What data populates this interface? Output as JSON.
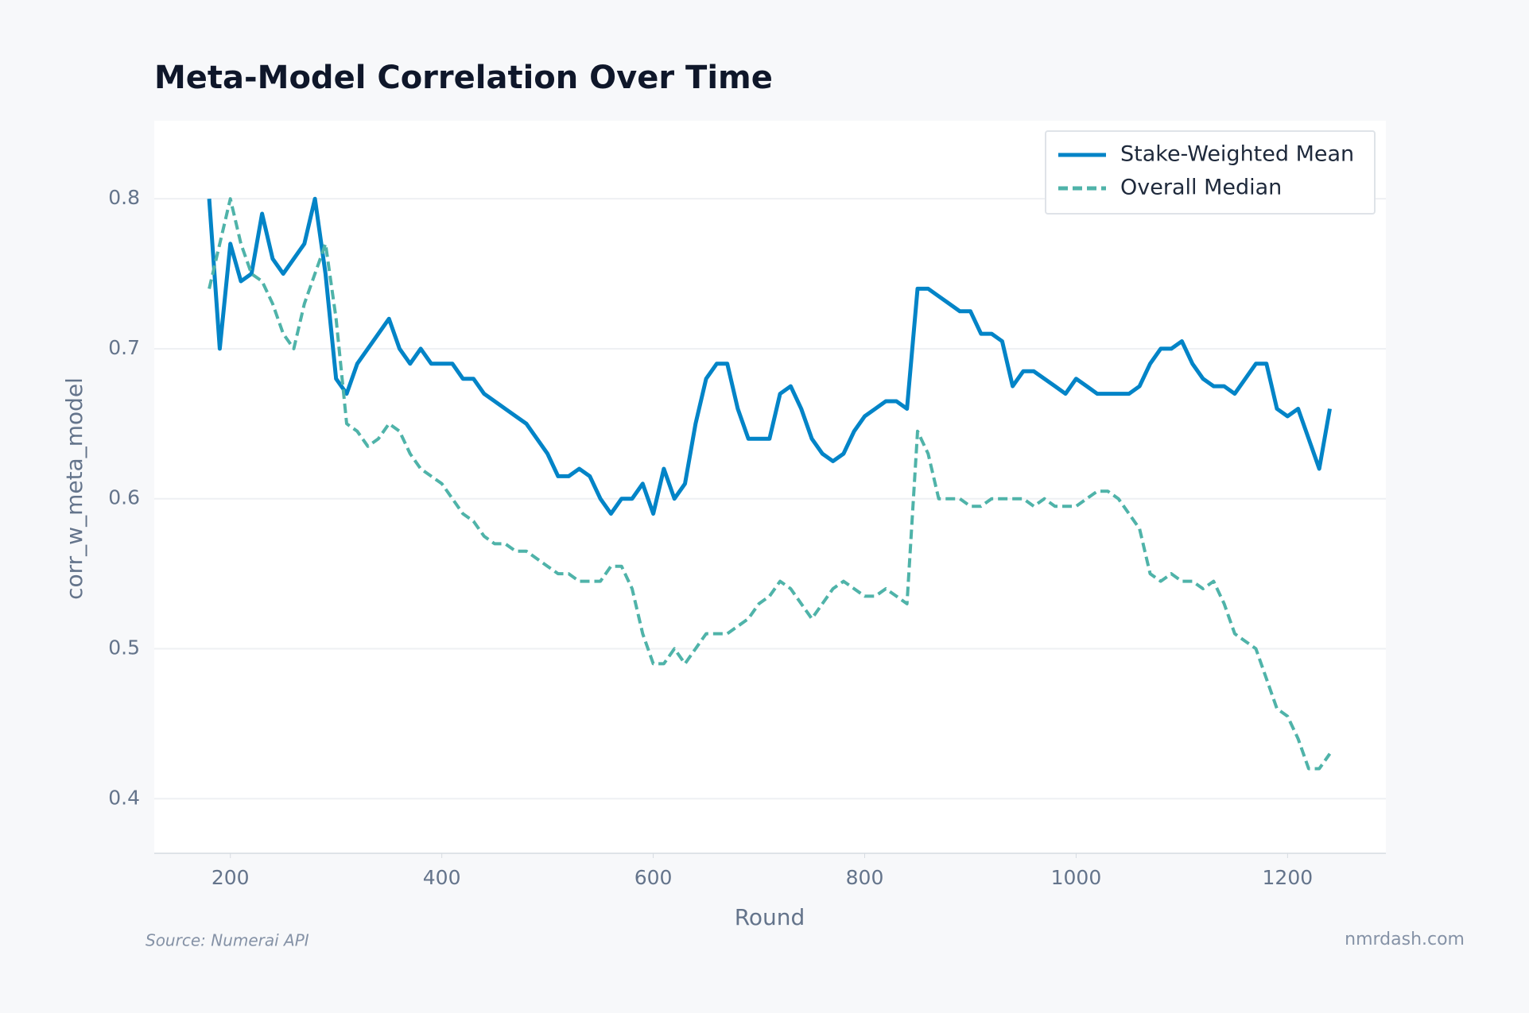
{
  "chart_data": {
    "type": "line",
    "title": "Meta-Model Correlation Over Time",
    "x_label": "Round",
    "y_label": "corr_w_meta_model",
    "source": "Source: Numerai API",
    "watermark": "nmrdash.com",
    "x": [
      180,
      190,
      200,
      210,
      220,
      230,
      240,
      250,
      260,
      270,
      280,
      290,
      300,
      310,
      320,
      330,
      340,
      350,
      360,
      370,
      380,
      390,
      400,
      410,
      420,
      430,
      440,
      450,
      460,
      470,
      480,
      490,
      500,
      510,
      520,
      530,
      540,
      550,
      560,
      570,
      580,
      590,
      600,
      610,
      620,
      630,
      640,
      650,
      660,
      670,
      680,
      690,
      700,
      710,
      720,
      730,
      740,
      750,
      760,
      770,
      780,
      790,
      800,
      810,
      820,
      830,
      840,
      850,
      860,
      870,
      880,
      890,
      900,
      910,
      920,
      930,
      940,
      950,
      960,
      970,
      980,
      990,
      1000,
      1010,
      1020,
      1030,
      1040,
      1050,
      1060,
      1070,
      1080,
      1090,
      1100,
      1110,
      1120,
      1130,
      1140,
      1150,
      1160,
      1170,
      1180,
      1190,
      1200,
      1210,
      1220,
      1230,
      1240
    ],
    "series": [
      {
        "name": "Stake-Weighted Mean",
        "color": "#0284c7",
        "dash": false,
        "values": [
          0.8,
          0.7,
          0.77,
          0.745,
          0.75,
          0.79,
          0.76,
          0.75,
          0.76,
          0.77,
          0.8,
          0.75,
          0.68,
          0.67,
          0.69,
          0.7,
          0.71,
          0.72,
          0.7,
          0.69,
          0.7,
          0.69,
          0.69,
          0.69,
          0.68,
          0.68,
          0.67,
          0.665,
          0.66,
          0.655,
          0.65,
          0.64,
          0.63,
          0.615,
          0.615,
          0.62,
          0.615,
          0.6,
          0.59,
          0.6,
          0.6,
          0.61,
          0.59,
          0.62,
          0.6,
          0.61,
          0.65,
          0.68,
          0.69,
          0.69,
          0.66,
          0.64,
          0.64,
          0.64,
          0.67,
          0.675,
          0.66,
          0.64,
          0.63,
          0.625,
          0.63,
          0.645,
          0.655,
          0.66,
          0.665,
          0.665,
          0.66,
          0.74,
          0.74,
          0.735,
          0.73,
          0.725,
          0.725,
          0.71,
          0.71,
          0.705,
          0.675,
          0.685,
          0.685,
          0.68,
          0.675,
          0.67,
          0.68,
          0.675,
          0.67,
          0.67,
          0.67,
          0.67,
          0.675,
          0.69,
          0.7,
          0.7,
          0.705,
          0.69,
          0.68,
          0.675,
          0.675,
          0.67,
          0.68,
          0.69,
          0.69,
          0.66,
          0.655,
          0.66,
          0.64,
          0.62,
          0.66
        ]
      },
      {
        "name": "Overall Median",
        "color": "#4fb3a9",
        "dash": true,
        "values": [
          0.74,
          0.77,
          0.8,
          0.77,
          0.75,
          0.745,
          0.73,
          0.71,
          0.7,
          0.73,
          0.75,
          0.77,
          0.72,
          0.65,
          0.645,
          0.635,
          0.64,
          0.65,
          0.645,
          0.63,
          0.62,
          0.615,
          0.61,
          0.6,
          0.59,
          0.585,
          0.575,
          0.57,
          0.57,
          0.565,
          0.565,
          0.56,
          0.555,
          0.55,
          0.55,
          0.545,
          0.545,
          0.545,
          0.555,
          0.555,
          0.54,
          0.51,
          0.49,
          0.49,
          0.5,
          0.49,
          0.5,
          0.51,
          0.51,
          0.51,
          0.515,
          0.52,
          0.53,
          0.535,
          0.545,
          0.54,
          0.53,
          0.52,
          0.53,
          0.54,
          0.545,
          0.54,
          0.535,
          0.535,
          0.54,
          0.535,
          0.53,
          0.645,
          0.63,
          0.6,
          0.6,
          0.6,
          0.595,
          0.595,
          0.6,
          0.6,
          0.6,
          0.6,
          0.595,
          0.6,
          0.595,
          0.595,
          0.595,
          0.6,
          0.605,
          0.605,
          0.6,
          0.59,
          0.58,
          0.55,
          0.545,
          0.55,
          0.545,
          0.545,
          0.54,
          0.545,
          0.53,
          0.51,
          0.505,
          0.5,
          0.48,
          0.46,
          0.455,
          0.44,
          0.42,
          0.42,
          0.43
        ]
      }
    ],
    "xlim": [
      128,
      1293
    ],
    "ylim": [
      0.3636,
      0.852
    ],
    "xticks": [
      200,
      400,
      600,
      800,
      1000,
      1200
    ],
    "yticks": [
      0.4,
      0.5,
      0.6,
      0.7,
      0.8
    ],
    "grid": true,
    "legend": "upper right"
  }
}
